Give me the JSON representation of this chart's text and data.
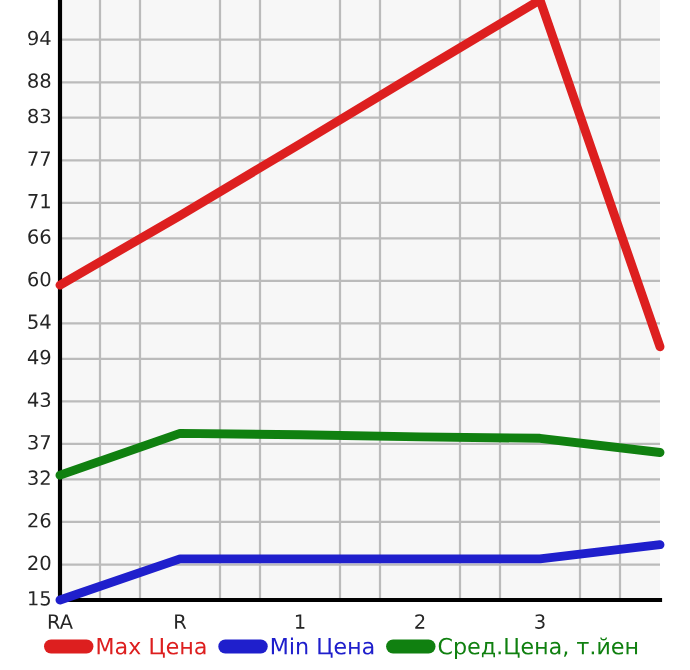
{
  "chart_data": {
    "type": "line",
    "categories": [
      "RA",
      "R",
      "1",
      "2",
      "3",
      null
    ],
    "series": [
      {
        "name": "Max Цена",
        "color": "#dd1f1f",
        "values": [
          59.4,
          69.2,
          79.3,
          89.5,
          99.6,
          50.7
        ]
      },
      {
        "name": "Min Цена",
        "color": "#1f1fcc",
        "values": [
          15,
          20.8,
          20.8,
          20.8,
          20.8,
          22.8
        ]
      },
      {
        "name": "Сред.Цена, т.йен",
        "color": "#108010",
        "values": [
          32.6,
          38.5,
          38.3,
          38.0,
          37.8,
          35.8
        ]
      }
    ],
    "ylim": [
      15,
      99.6
    ],
    "yticks": [
      15,
      20,
      26,
      32,
      37,
      43,
      49,
      54,
      60,
      66,
      71,
      77,
      83,
      88,
      94
    ],
    "grid": true,
    "legend": "bottom",
    "marker": "none",
    "line_style": "solid"
  }
}
